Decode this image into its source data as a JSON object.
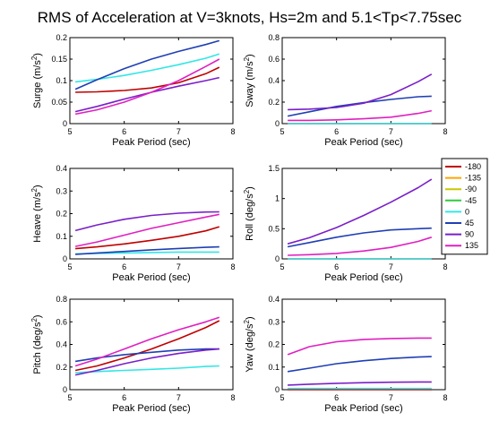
{
  "figure": {
    "title": "RMS of Acceleration at V=3knots, Hs=2m and 5.1<Tp<7.75sec"
  },
  "legend": {
    "entries": [
      {
        "label": "-180",
        "color": "#c00000"
      },
      {
        "label": "-135",
        "color": "#ffa500"
      },
      {
        "label": "-90",
        "color": "#c8c800"
      },
      {
        "label": "-45",
        "color": "#2ecc40"
      },
      {
        "label": "0",
        "color": "#33e6e6"
      },
      {
        "label": "45",
        "color": "#1f3fb4"
      },
      {
        "label": "90",
        "color": "#7a1fc8"
      },
      {
        "label": "135",
        "color": "#e020c0"
      }
    ]
  },
  "chart_data": [
    {
      "type": "line",
      "ylabel": "Surge (m/s2)",
      "ylabel_main": "Surge (m/s",
      "ylabel_sup": "2",
      "ylabel_end": ")",
      "xlabel": "Peak Period (sec)",
      "xlim": [
        5,
        8
      ],
      "ylim": [
        0,
        0.2
      ],
      "xticks": [
        "5",
        "6",
        "7",
        "8"
      ],
      "yticks": [
        "0",
        "0.05",
        "0.1",
        "0.15",
        "0.2"
      ],
      "x": [
        5.1,
        5.5,
        6.0,
        6.5,
        7.0,
        7.5,
        7.75
      ],
      "series": [
        {
          "name": "-180",
          "color": "#c00000",
          "values": [
            0.073,
            0.074,
            0.077,
            0.083,
            0.095,
            0.116,
            0.131
          ]
        },
        {
          "name": "0",
          "color": "#33e6e6",
          "values": [
            0.097,
            0.103,
            0.112,
            0.124,
            0.137,
            0.152,
            0.162
          ]
        },
        {
          "name": "45",
          "color": "#1f3fb4",
          "values": [
            0.08,
            0.102,
            0.128,
            0.15,
            0.168,
            0.184,
            0.193
          ]
        },
        {
          "name": "90",
          "color": "#7a1fc8",
          "values": [
            0.028,
            0.04,
            0.057,
            0.073,
            0.087,
            0.1,
            0.107
          ]
        },
        {
          "name": "135",
          "color": "#e020c0",
          "values": [
            0.022,
            0.032,
            0.05,
            0.073,
            0.1,
            0.133,
            0.15
          ]
        }
      ]
    },
    {
      "type": "line",
      "ylabel": "Sway (m/s2)",
      "ylabel_main": "Sway (m/s",
      "ylabel_sup": "2",
      "ylabel_end": ")",
      "xlabel": "Peak Period (sec)",
      "xlim": [
        5,
        8
      ],
      "ylim": [
        0,
        0.8
      ],
      "xticks": [
        "5",
        "6",
        "7",
        "8"
      ],
      "yticks": [
        "0",
        "0.2",
        "0.4",
        "0.6",
        "0.8"
      ],
      "x": [
        5.1,
        5.5,
        6.0,
        6.5,
        7.0,
        7.5,
        7.75
      ],
      "series": [
        {
          "name": "-180",
          "color": "#c00000",
          "values": [
            0.0,
            0.0,
            0.0,
            0.0,
            0.0,
            0.0,
            0.0
          ]
        },
        {
          "name": "0",
          "color": "#33e6e6",
          "values": [
            0.0,
            0.0,
            0.0,
            0.0,
            0.0,
            0.0,
            0.0
          ]
        },
        {
          "name": "45",
          "color": "#1f3fb4",
          "values": [
            0.07,
            0.11,
            0.16,
            0.195,
            0.225,
            0.25,
            0.255
          ]
        },
        {
          "name": "90",
          "color": "#7a1fc8",
          "values": [
            0.13,
            0.135,
            0.15,
            0.19,
            0.27,
            0.39,
            0.46
          ]
        },
        {
          "name": "135",
          "color": "#e020c0",
          "values": [
            0.03,
            0.03,
            0.035,
            0.045,
            0.06,
            0.095,
            0.12
          ]
        }
      ]
    },
    {
      "type": "line",
      "ylabel": "Heave (m/s2)",
      "ylabel_main": "Heave (m/s",
      "ylabel_sup": "2",
      "ylabel_end": ")",
      "xlabel": "Peak Period (sec)",
      "xlim": [
        5,
        8
      ],
      "ylim": [
        0,
        0.4
      ],
      "xticks": [
        "5",
        "6",
        "7",
        "8"
      ],
      "yticks": [
        "0",
        "0.1",
        "0.2",
        "0.3",
        "0.4"
      ],
      "x": [
        5.1,
        5.5,
        6.0,
        6.5,
        7.0,
        7.5,
        7.75
      ],
      "series": [
        {
          "name": "-180",
          "color": "#c00000",
          "values": [
            0.045,
            0.053,
            0.066,
            0.082,
            0.1,
            0.124,
            0.142
          ]
        },
        {
          "name": "0",
          "color": "#33e6e6",
          "values": [
            0.022,
            0.024,
            0.026,
            0.028,
            0.03,
            0.03,
            0.03
          ]
        },
        {
          "name": "45",
          "color": "#1f3fb4",
          "values": [
            0.02,
            0.026,
            0.033,
            0.04,
            0.046,
            0.051,
            0.053
          ]
        },
        {
          "name": "90",
          "color": "#7a1fc8",
          "values": [
            0.125,
            0.15,
            0.175,
            0.192,
            0.202,
            0.207,
            0.208
          ]
        },
        {
          "name": "135",
          "color": "#e020c0",
          "values": [
            0.055,
            0.075,
            0.105,
            0.135,
            0.16,
            0.185,
            0.197
          ]
        }
      ]
    },
    {
      "type": "line",
      "ylabel": "Roll (deg/s2)",
      "ylabel_main": "Roll (deg/s",
      "ylabel_sup": "2",
      "ylabel_end": ")",
      "xlabel": "Peak Period (sec)",
      "xlim": [
        5,
        8
      ],
      "ylim": [
        0,
        1.5
      ],
      "xticks": [
        "5",
        "6",
        "7",
        "8"
      ],
      "yticks": [
        "0",
        "0.5",
        "1",
        "1.5"
      ],
      "x": [
        5.1,
        5.5,
        6.0,
        6.5,
        7.0,
        7.5,
        7.75
      ],
      "series": [
        {
          "name": "-180",
          "color": "#c00000",
          "values": [
            0.0,
            0.0,
            0.0,
            0.0,
            0.0,
            0.0,
            0.0
          ]
        },
        {
          "name": "0",
          "color": "#33e6e6",
          "values": [
            0.0,
            0.0,
            0.0,
            0.0,
            0.0,
            0.0,
            0.0
          ]
        },
        {
          "name": "45",
          "color": "#1f3fb4",
          "values": [
            0.2,
            0.27,
            0.36,
            0.43,
            0.48,
            0.5,
            0.51
          ]
        },
        {
          "name": "90",
          "color": "#7a1fc8",
          "values": [
            0.25,
            0.35,
            0.52,
            0.72,
            0.94,
            1.18,
            1.32
          ]
        },
        {
          "name": "135",
          "color": "#e020c0",
          "values": [
            0.06,
            0.07,
            0.09,
            0.13,
            0.19,
            0.29,
            0.36
          ]
        }
      ]
    },
    {
      "type": "line",
      "ylabel": "Pitch (deg/s2)",
      "ylabel_main": "Pitch (deg/s",
      "ylabel_sup": "2",
      "ylabel_end": ")",
      "xlabel": "Peak Period (sec)",
      "xlim": [
        5,
        8
      ],
      "ylim": [
        0,
        0.8
      ],
      "xticks": [
        "5",
        "6",
        "7",
        "8"
      ],
      "yticks": [
        "0",
        "0.2",
        "0.4",
        "0.6",
        "0.8"
      ],
      "x": [
        5.1,
        5.5,
        6.0,
        6.5,
        7.0,
        7.5,
        7.75
      ],
      "series": [
        {
          "name": "-180",
          "color": "#c00000",
          "values": [
            0.17,
            0.21,
            0.28,
            0.36,
            0.45,
            0.55,
            0.61
          ]
        },
        {
          "name": "0",
          "color": "#33e6e6",
          "values": [
            0.15,
            0.16,
            0.17,
            0.18,
            0.19,
            0.205,
            0.21
          ]
        },
        {
          "name": "45",
          "color": "#1f3fb4",
          "values": [
            0.25,
            0.28,
            0.31,
            0.33,
            0.35,
            0.36,
            0.36
          ]
        },
        {
          "name": "90",
          "color": "#7a1fc8",
          "values": [
            0.13,
            0.17,
            0.23,
            0.28,
            0.32,
            0.35,
            0.36
          ]
        },
        {
          "name": "135",
          "color": "#e020c0",
          "values": [
            0.21,
            0.27,
            0.36,
            0.45,
            0.53,
            0.6,
            0.64
          ]
        }
      ]
    },
    {
      "type": "line",
      "ylabel": "Yaw (deg/s2)",
      "ylabel_main": "Yaw (deg/s",
      "ylabel_sup": "2",
      "ylabel_end": ")",
      "xlabel": "Peak Period (sec)",
      "xlim": [
        5,
        8
      ],
      "ylim": [
        0,
        0.4
      ],
      "xticks": [
        "5",
        "6",
        "7",
        "8"
      ],
      "yticks": [
        "0",
        "0.1",
        "0.2",
        "0.3",
        "0.4"
      ],
      "x": [
        5.1,
        5.5,
        6.0,
        6.5,
        7.0,
        7.5,
        7.75
      ],
      "series": [
        {
          "name": "-180",
          "color": "#c00000",
          "values": [
            0.0,
            0.0,
            0.0,
            0.0,
            0.0,
            0.0,
            0.0
          ]
        },
        {
          "name": "0",
          "color": "#33e6e6",
          "values": [
            0.005,
            0.005,
            0.005,
            0.005,
            0.005,
            0.005,
            0.005
          ]
        },
        {
          "name": "45",
          "color": "#1f3fb4",
          "values": [
            0.08,
            0.095,
            0.115,
            0.128,
            0.138,
            0.144,
            0.146
          ]
        },
        {
          "name": "90",
          "color": "#7a1fc8",
          "values": [
            0.02,
            0.024,
            0.028,
            0.031,
            0.033,
            0.034,
            0.034
          ]
        },
        {
          "name": "135",
          "color": "#e020c0",
          "values": [
            0.155,
            0.19,
            0.212,
            0.222,
            0.226,
            0.228,
            0.228
          ]
        }
      ]
    }
  ]
}
